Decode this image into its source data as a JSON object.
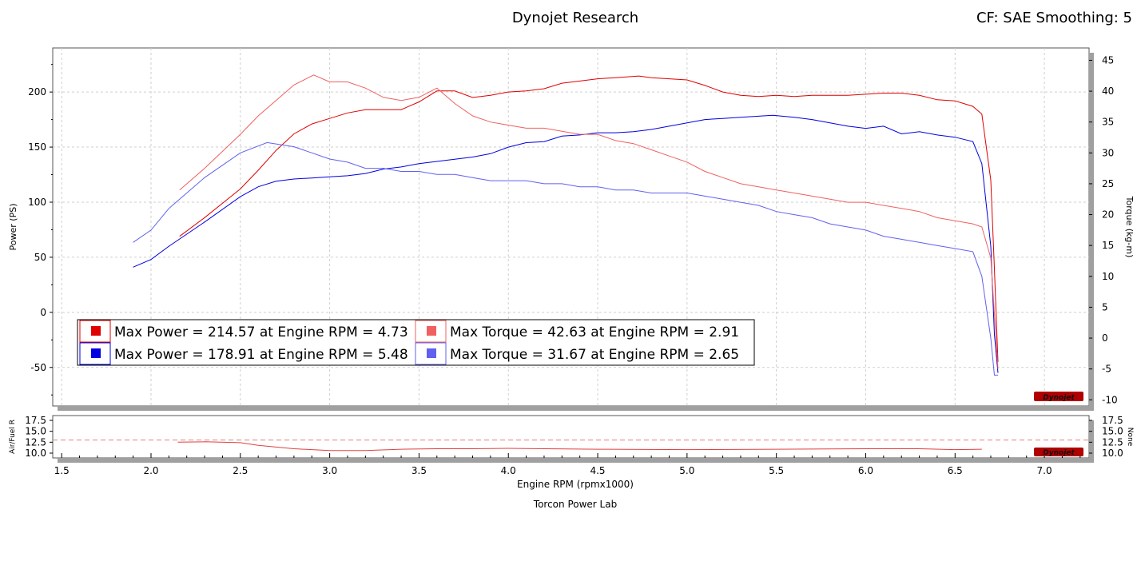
{
  "header": {
    "title": "Dynojet Research",
    "cf": "CF: SAE Smoothing: 5"
  },
  "footer": "Torcon Power Lab",
  "logo_text": "Dynojet",
  "chart_data": [
    {
      "type": "line",
      "title": "Dynojet Research",
      "xlabel": "Engine RPM (rpmx1000)",
      "ylabel": "Power (PS)",
      "y2label": "Torque (kg-m)",
      "xlim": [
        1.45,
        7.25
      ],
      "ylim": [
        -85,
        240
      ],
      "y2lim": [
        -11,
        47
      ],
      "x_ticks": [
        1.5,
        2.0,
        2.5,
        3.0,
        3.5,
        4.0,
        4.5,
        5.0,
        5.5,
        6.0,
        6.5,
        7.0
      ],
      "y_ticks": [
        -50,
        0,
        50,
        100,
        150,
        200
      ],
      "y2_ticks": [
        -10,
        -5,
        0,
        5,
        10,
        15,
        20,
        25,
        30,
        35,
        40,
        45
      ],
      "grid": true,
      "legend_position": "bottom-left",
      "series": [
        {
          "name": "Max Power = 214.57 at Engine RPM = 4.73",
          "axis": "left",
          "color": "#e00000",
          "x": [
            2.16,
            2.3,
            2.5,
            2.6,
            2.7,
            2.8,
            2.9,
            3.0,
            3.1,
            3.2,
            3.3,
            3.4,
            3.5,
            3.6,
            3.7,
            3.8,
            3.9,
            4.0,
            4.1,
            4.2,
            4.3,
            4.4,
            4.5,
            4.6,
            4.73,
            4.8,
            4.9,
            5.0,
            5.1,
            5.2,
            5.3,
            5.4,
            5.5,
            5.6,
            5.7,
            5.8,
            5.9,
            6.0,
            6.1,
            6.2,
            6.3,
            6.4,
            6.5,
            6.6,
            6.65,
            6.7,
            6.72,
            6.74
          ],
          "y": [
            69,
            86,
            112,
            129,
            147,
            162,
            171,
            176,
            181,
            184,
            184,
            184,
            191,
            201,
            201,
            195,
            197,
            200,
            201,
            203,
            208,
            210,
            212,
            213,
            214.57,
            213,
            212,
            211,
            206,
            200,
            197,
            196,
            197,
            196,
            197,
            197,
            197,
            198,
            199,
            199,
            197,
            193,
            192,
            187,
            180,
            120,
            40,
            -45
          ]
        },
        {
          "name": "Max Power = 178.91 at Engine RPM = 5.48",
          "axis": "left",
          "color": "#0000e0",
          "x": [
            1.9,
            2.0,
            2.1,
            2.3,
            2.5,
            2.6,
            2.7,
            2.8,
            2.9,
            3.0,
            3.1,
            3.2,
            3.3,
            3.4,
            3.5,
            3.6,
            3.7,
            3.8,
            3.9,
            4.0,
            4.1,
            4.2,
            4.3,
            4.4,
            4.5,
            4.6,
            4.7,
            4.8,
            4.9,
            5.0,
            5.1,
            5.2,
            5.3,
            5.48,
            5.6,
            5.7,
            5.8,
            5.9,
            6.0,
            6.1,
            6.2,
            6.3,
            6.4,
            6.5,
            6.6,
            6.65,
            6.7,
            6.72,
            6.74
          ],
          "y": [
            41,
            48,
            60,
            82,
            105,
            114,
            119,
            121,
            122,
            123,
            124,
            126,
            130,
            132,
            135,
            137,
            139,
            141,
            144,
            150,
            154,
            155,
            160,
            161,
            163,
            163,
            164,
            166,
            169,
            172,
            175,
            176,
            177,
            178.91,
            177,
            175,
            172,
            169,
            167,
            169,
            162,
            164,
            161,
            159,
            155,
            135,
            60,
            -20,
            -55
          ]
        },
        {
          "name": "Max Torque = 42.63 at Engine RPM = 2.91",
          "axis": "right",
          "color": "#f06060",
          "x": [
            2.16,
            2.3,
            2.5,
            2.6,
            2.7,
            2.8,
            2.91,
            3.0,
            3.1,
            3.2,
            3.3,
            3.4,
            3.5,
            3.6,
            3.7,
            3.8,
            3.9,
            4.0,
            4.1,
            4.2,
            4.3,
            4.4,
            4.5,
            4.6,
            4.7,
            4.8,
            4.9,
            5.0,
            5.1,
            5.2,
            5.3,
            5.4,
            5.5,
            5.6,
            5.7,
            5.8,
            5.9,
            6.0,
            6.1,
            6.2,
            6.3,
            6.4,
            6.5,
            6.6,
            6.65,
            6.7,
            6.72,
            6.74
          ],
          "y": [
            24,
            27.5,
            33,
            36,
            38.5,
            41,
            42.63,
            41.5,
            41.5,
            40.5,
            39,
            38.5,
            39,
            40.5,
            38,
            36,
            35,
            34.5,
            34,
            34,
            33.5,
            33,
            33,
            32,
            31.5,
            30.5,
            29.5,
            28.5,
            27,
            26,
            25,
            24.5,
            24,
            23.5,
            23,
            22.5,
            22,
            22,
            21.5,
            21,
            20.5,
            19.5,
            19,
            18.5,
            18,
            13,
            4,
            -5
          ]
        },
        {
          "name": "Max Torque = 31.67 at Engine RPM = 2.65",
          "axis": "right",
          "color": "#6060f0",
          "x": [
            1.9,
            2.0,
            2.1,
            2.3,
            2.5,
            2.65,
            2.8,
            2.9,
            3.0,
            3.1,
            3.2,
            3.3,
            3.4,
            3.5,
            3.6,
            3.7,
            3.8,
            3.9,
            4.0,
            4.1,
            4.2,
            4.3,
            4.4,
            4.5,
            4.6,
            4.7,
            4.8,
            4.9,
            5.0,
            5.1,
            5.2,
            5.3,
            5.4,
            5.5,
            5.6,
            5.7,
            5.8,
            5.9,
            6.0,
            6.1,
            6.2,
            6.3,
            6.4,
            6.5,
            6.6,
            6.65,
            6.7,
            6.72,
            6.74
          ],
          "y": [
            15.5,
            17.5,
            21,
            26,
            30,
            31.67,
            31,
            30,
            29,
            28.5,
            27.5,
            27.5,
            27,
            27,
            26.5,
            26.5,
            26,
            25.5,
            25.5,
            25.5,
            25,
            25,
            24.5,
            24.5,
            24,
            24,
            23.5,
            23.5,
            23.5,
            23,
            22.5,
            22,
            21.5,
            20.5,
            20,
            19.5,
            18.5,
            18,
            17.5,
            16.5,
            16,
            15.5,
            15,
            14.5,
            14,
            10,
            0,
            -6,
            -6
          ]
        }
      ]
    },
    {
      "type": "line",
      "xlabel": "Engine RPM (rpmx1000)",
      "ylabel": "Air/Fuel R",
      "y2label": "None",
      "xlim": [
        1.45,
        7.25
      ],
      "ylim": [
        8.9,
        18.6
      ],
      "y_ticks": [
        10.0,
        12.5,
        15.0,
        17.5
      ],
      "y2_ticks": [
        10.0,
        12.5,
        15.0,
        17.5
      ],
      "reference_line": 13.0,
      "series": [
        {
          "axis": "left",
          "color": "#e04040",
          "x": [
            2.15,
            2.3,
            2.5,
            2.6,
            2.8,
            3.0,
            3.2,
            3.4,
            3.6,
            3.8,
            4.0,
            4.2,
            4.5,
            5.0,
            5.5,
            6.0,
            6.3,
            6.5,
            6.65
          ],
          "y": [
            12.5,
            12.6,
            12.4,
            11.8,
            11.0,
            10.6,
            10.6,
            10.9,
            11.0,
            11.0,
            11.1,
            11.0,
            10.9,
            10.8,
            10.9,
            11.0,
            11.0,
            10.8,
            10.9
          ]
        }
      ]
    }
  ]
}
